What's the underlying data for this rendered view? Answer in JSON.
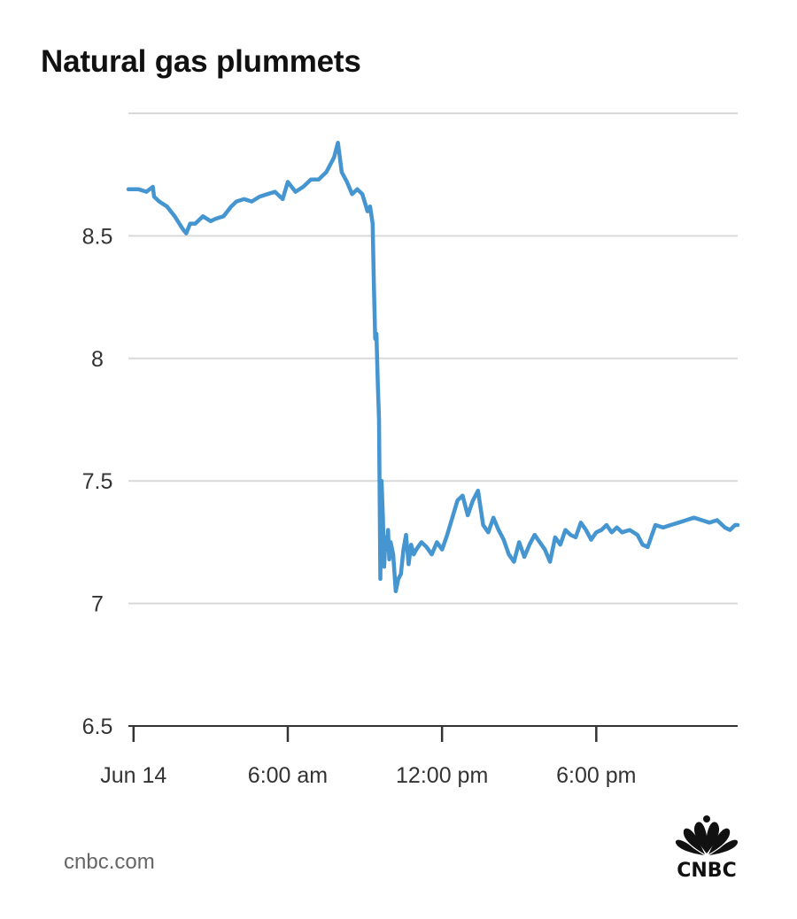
{
  "chart_data": {
    "type": "line",
    "title": "Natural gas plummets",
    "xlabel": "",
    "ylabel": "",
    "x_ticks": [
      {
        "label": "Jun 14",
        "hour": 0
      },
      {
        "label": "6:00 am",
        "hour": 6
      },
      {
        "label": "12:00 pm",
        "hour": 12
      },
      {
        "label": "6:00 pm",
        "hour": 18
      }
    ],
    "x_unit": "hours since Jun 14 00:00",
    "xlim": [
      -0.2,
      23.5
    ],
    "ylim": [
      6.5,
      9.0
    ],
    "y_ticks": [
      6.5,
      7,
      7.5,
      8,
      8.5
    ],
    "grid": true,
    "legend": "none",
    "color": "#4595d1",
    "series": [
      {
        "x": [
          -0.2,
          0.2,
          0.5,
          0.75,
          0.8,
          1.0,
          1.3,
          1.6,
          1.9,
          2.05,
          2.2,
          2.4,
          2.7,
          3.0,
          3.2,
          3.5,
          3.8,
          4.0,
          4.3,
          4.6,
          4.9,
          5.2,
          5.5,
          5.8,
          6.0,
          6.3,
          6.6,
          6.9,
          7.2,
          7.5,
          7.8,
          7.95,
          8.1,
          8.3,
          8.5,
          8.7,
          8.9,
          9.1,
          9.2,
          9.3,
          9.35,
          9.4,
          9.45,
          9.5,
          9.55,
          9.6,
          9.65,
          9.7,
          9.75,
          9.8,
          9.85,
          9.9,
          9.95,
          10.0,
          10.1,
          10.2,
          10.3,
          10.4,
          10.5,
          10.6,
          10.7,
          10.8,
          10.9,
          11.0,
          11.2,
          11.4,
          11.6,
          11.8,
          12.0,
          12.2,
          12.4,
          12.6,
          12.8,
          13.0,
          13.2,
          13.4,
          13.6,
          13.8,
          14.0,
          14.2,
          14.4,
          14.6,
          14.8,
          15.0,
          15.2,
          15.4,
          15.6,
          15.8,
          16.0,
          16.2,
          16.4,
          16.6,
          16.8,
          17.0,
          17.2,
          17.4,
          17.6,
          17.8,
          18.0,
          18.2,
          18.4,
          18.6,
          18.8,
          19.0,
          19.3,
          19.6,
          19.8,
          20.0,
          20.3,
          20.6,
          20.9,
          21.2,
          21.5,
          21.8,
          22.1,
          22.4,
          22.7,
          23.0,
          23.2,
          23.4,
          23.5
        ],
        "y": [
          8.69,
          8.69,
          8.68,
          8.7,
          8.66,
          8.64,
          8.62,
          8.58,
          8.53,
          8.51,
          8.55,
          8.55,
          8.58,
          8.56,
          8.57,
          8.58,
          8.62,
          8.64,
          8.65,
          8.64,
          8.66,
          8.67,
          8.68,
          8.65,
          8.72,
          8.68,
          8.7,
          8.73,
          8.73,
          8.76,
          8.82,
          8.88,
          8.76,
          8.72,
          8.67,
          8.69,
          8.67,
          8.6,
          8.62,
          8.55,
          8.3,
          8.08,
          8.1,
          7.9,
          7.75,
          7.1,
          7.5,
          7.35,
          7.15,
          7.27,
          7.22,
          7.3,
          7.18,
          7.25,
          7.2,
          7.05,
          7.1,
          7.12,
          7.22,
          7.28,
          7.16,
          7.24,
          7.2,
          7.22,
          7.25,
          7.23,
          7.2,
          7.25,
          7.22,
          7.28,
          7.35,
          7.42,
          7.44,
          7.36,
          7.42,
          7.46,
          7.32,
          7.29,
          7.35,
          7.3,
          7.26,
          7.2,
          7.17,
          7.25,
          7.19,
          7.24,
          7.28,
          7.25,
          7.22,
          7.17,
          7.27,
          7.24,
          7.3,
          7.28,
          7.27,
          7.33,
          7.3,
          7.26,
          7.29,
          7.3,
          7.32,
          7.29,
          7.31,
          7.29,
          7.3,
          7.28,
          7.24,
          7.23,
          7.32,
          7.31,
          7.32,
          7.33,
          7.34,
          7.35,
          7.34,
          7.33,
          7.34,
          7.31,
          7.3,
          7.32,
          7.32
        ]
      }
    ]
  },
  "footer": {
    "source": "cnbc.com",
    "logo_text": "CNBC"
  },
  "colors": {
    "line": "#4595d1",
    "grid": "#d9d9d9",
    "axis": "#333333"
  }
}
